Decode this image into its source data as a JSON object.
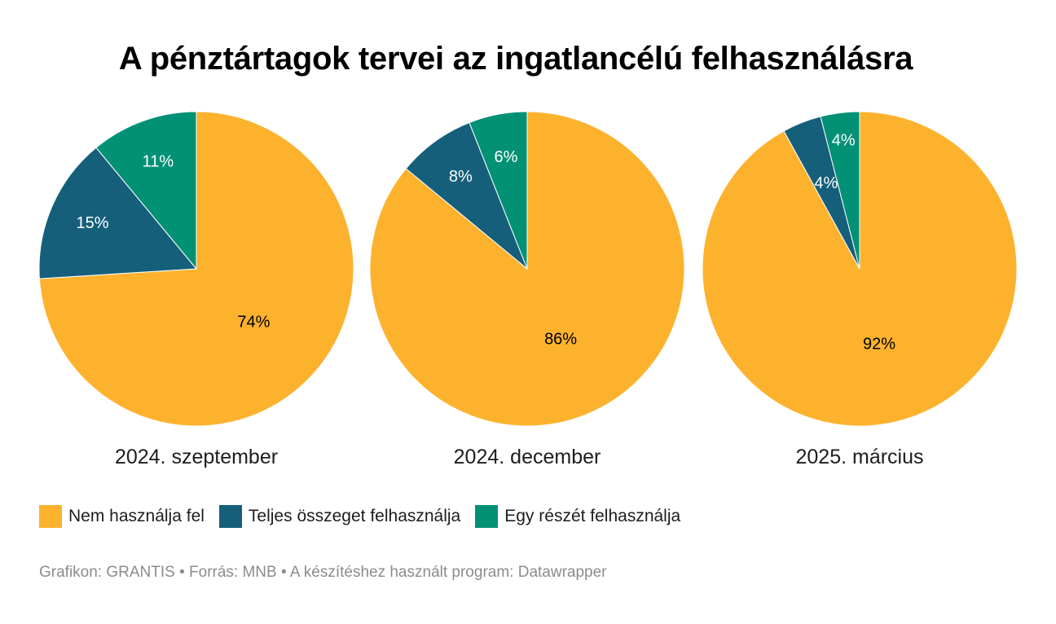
{
  "title": "A pénztártagok tervei az ingatlancélú felhasználásra",
  "legend": [
    {
      "label": "Nem használja fel",
      "color": "#fdb22e"
    },
    {
      "label": "Teljes összeget felhasználja",
      "color": "#155f7b"
    },
    {
      "label": "Egy részét felhasználja",
      "color": "#039176"
    }
  ],
  "footer": "Grafikon: GRANTIS • Forrás: MNB • A készítéshez használt program: Datawrapper",
  "chart_data": [
    {
      "type": "pie",
      "title": "2024. szeptember",
      "categories": [
        "Nem használja fel",
        "Teljes összeget felhasználja",
        "Egy részét felhasználja"
      ],
      "values": [
        74,
        15,
        11
      ],
      "labels": [
        "74%",
        "15%",
        "11%"
      ]
    },
    {
      "type": "pie",
      "title": "2024. december",
      "categories": [
        "Nem használja fel",
        "Teljes összeget felhasználja",
        "Egy részét felhasználja"
      ],
      "values": [
        86,
        8,
        6
      ],
      "labels": [
        "86%",
        "8%",
        "6%"
      ]
    },
    {
      "type": "pie",
      "title": "2025. március",
      "categories": [
        "Nem használja fel",
        "Teljes összeget felhasználja",
        "Egy részét felhasználja"
      ],
      "values": [
        92,
        4,
        4
      ],
      "labels": [
        "92%",
        "4%",
        "4%"
      ]
    }
  ]
}
